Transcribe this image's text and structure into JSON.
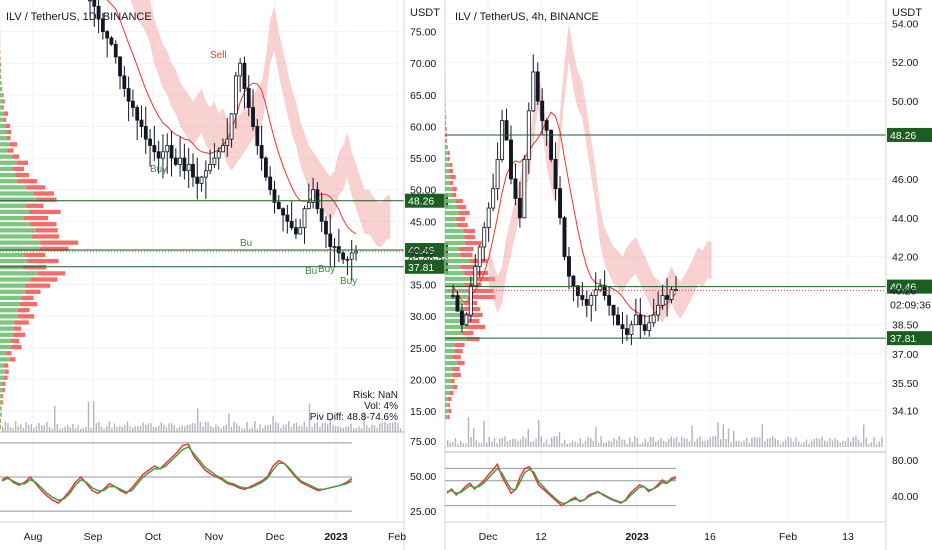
{
  "chart_data": [
    {
      "type": "candlestick",
      "title": "ILV / TetherUS, 1D, BINANCE",
      "currency_label": "USDT",
      "ylim": [
        12,
        80
      ],
      "y_ticks": [
        75.0,
        70.0,
        65.0,
        60.0,
        55.0,
        50.0,
        45.0,
        35.0,
        30.0,
        25.0,
        20.0,
        15.0
      ],
      "x_ticks": [
        "Aug",
        "Sep",
        "Oct",
        "Nov",
        "Dec",
        "2023",
        "Feb"
      ],
      "price_labels": [
        {
          "text": "48.26",
          "value": 48.26,
          "style": "green"
        },
        {
          "text": "40.46",
          "value": 40.46,
          "style": "green"
        },
        {
          "text": "40.26",
          "value": 40.26,
          "style": "plain"
        },
        {
          "text": "02:09:36",
          "value": 38.9,
          "style": "plain"
        },
        {
          "text": "37.81",
          "value": 37.81,
          "style": "green"
        }
      ],
      "horizontal_levels": [
        48.26,
        40.46,
        37.81
      ],
      "current_price": 40.26,
      "signals": [
        {
          "text": "Buy",
          "kind": "buy"
        },
        {
          "text": "Sell",
          "kind": "sell"
        },
        {
          "text": "Bu",
          "kind": "buy"
        },
        {
          "text": "Bu",
          "kind": "buy"
        },
        {
          "text": "Buy",
          "kind": "buy"
        },
        {
          "text": "Buy",
          "kind": "buy"
        }
      ],
      "stats": [
        "Risk: NaN",
        "Vol: 4%",
        "Piv Diff: 48.8-74.6%"
      ],
      "series": [
        {
          "name": "close",
          "values": [
            80,
            79,
            77,
            75,
            74,
            73,
            71,
            68,
            66,
            64,
            63,
            61,
            60,
            58,
            57,
            56,
            55,
            56,
            57,
            55,
            54,
            55,
            53,
            54,
            52,
            51,
            52,
            53,
            54,
            55,
            56,
            57,
            58,
            62,
            68,
            70,
            66,
            63,
            60,
            57,
            55,
            52,
            50,
            48,
            47,
            46,
            45,
            44,
            43,
            44,
            47,
            48,
            50,
            47,
            45,
            43,
            41,
            41,
            40,
            39,
            39,
            40,
            40.26
          ]
        }
      ],
      "oscillator": {
        "y_ticks": [
          75.0,
          50.0,
          25.0
        ],
        "levels": [
          75,
          50,
          25
        ],
        "ylim": [
          20,
          80
        ],
        "series": [
          {
            "values": [
              48,
              50,
              46,
              44,
              46,
              50,
              45,
              40,
              36,
              33,
              31,
              35,
              40,
              46,
              50,
              45,
              40,
              38,
              41,
              45,
              43,
              40,
              38,
              42,
              47,
              52,
              55,
              58,
              56,
              60,
              64,
              68,
              73,
              74,
              65,
              60,
              55,
              52,
              50,
              48,
              45,
              44,
              42,
              41,
              43,
              45,
              47,
              50,
              58,
              62,
              60,
              55,
              50,
              46,
              44,
              42,
              40,
              41,
              42,
              43,
              44,
              46,
              49
            ]
          },
          {
            "values": [
              47,
              49,
              47,
              45,
              45,
              48,
              46,
              42,
              38,
              35,
              33,
              34,
              38,
              44,
              48,
              46,
              42,
              40,
              40,
              43,
              43,
              41,
              39,
              40,
              45,
              50,
              53,
              56,
              56,
              58,
              62,
              66,
              70,
              72,
              67,
              62,
              57,
              54,
              51,
              49,
              46,
              45,
              43,
              42,
              42,
              44,
              46,
              49,
              55,
              60,
              60,
              56,
              51,
              47,
              45,
              43,
              41,
              41,
              42,
              43,
              44,
              45,
              47
            ]
          }
        ]
      }
    },
    {
      "type": "candlestick",
      "title": "ILV / TetherUS, 4h, BINANCE",
      "currency_label": "USDT",
      "ylim": [
        33.6,
        55.2
      ],
      "y_ticks": [
        54.0,
        52.0,
        50.0,
        46.0,
        44.0,
        42.0,
        38.5,
        37.0,
        35.5,
        34.1
      ],
      "x_ticks": [
        "Dec",
        "12",
        "2023",
        "16",
        "Feb",
        "13"
      ],
      "price_labels": [
        {
          "text": "48.26",
          "value": 48.26,
          "style": "green"
        },
        {
          "text": "40.46",
          "value": 40.46,
          "style": "green"
        },
        {
          "text": "40.26",
          "value": 40.26,
          "style": "plain"
        },
        {
          "text": "02:09:36",
          "value": 39.55,
          "style": "plain"
        },
        {
          "text": "37.81",
          "value": 37.81,
          "style": "green"
        }
      ],
      "horizontal_levels": [
        48.26,
        40.46,
        37.81
      ],
      "current_price": 40.26,
      "series": [
        {
          "name": "close",
          "values": [
            40.0,
            39.2,
            38.5,
            39.0,
            40.5,
            41.5,
            42.5,
            43.5,
            44.5,
            45.5,
            47.0,
            49.0,
            48.0,
            46.0,
            45.0,
            44.0,
            47.0,
            49.5,
            51.5,
            50.0,
            49.0,
            48.5,
            47.0,
            45.5,
            44.0,
            42.0,
            41.0,
            40.5,
            40.0,
            39.8,
            39.5,
            40.0,
            40.3,
            40.5,
            40.0,
            39.5,
            39.0,
            38.5,
            38.3,
            38.0,
            38.5,
            39.0,
            38.5,
            38.2,
            38.6,
            39.0,
            39.5,
            40.0,
            39.8,
            40.3,
            40.26
          ]
        }
      ],
      "oscillator": {
        "y_ticks": [
          80.0,
          40.0
        ],
        "ylim": [
          20,
          95
        ],
        "levels": [
          80,
          65,
          35
        ],
        "series": [
          {
            "values": [
              50,
              55,
              48,
              52,
              58,
              62,
              55,
              60,
              65,
              72,
              78,
              85,
              70,
              60,
              50,
              55,
              70,
              80,
              82,
              72,
              60,
              55,
              50,
              45,
              40,
              35,
              38,
              42,
              45,
              40,
              42,
              48,
              50,
              52,
              48,
              45,
              42,
              40,
              38,
              42,
              50,
              55,
              60,
              58,
              52,
              55,
              60,
              66,
              62,
              68,
              70
            ]
          },
          {
            "values": [
              52,
              53,
              50,
              51,
              55,
              59,
              57,
              58,
              62,
              68,
              74,
              80,
              74,
              64,
              55,
              54,
              64,
              75,
              79,
              75,
              64,
              58,
              52,
              47,
              42,
              38,
              38,
              41,
              43,
              41,
              42,
              46,
              49,
              51,
              49,
              46,
              43,
              41,
              39,
              41,
              47,
              52,
              57,
              58,
              54,
              55,
              58,
              63,
              62,
              66,
              68
            ]
          }
        ]
      }
    }
  ]
}
